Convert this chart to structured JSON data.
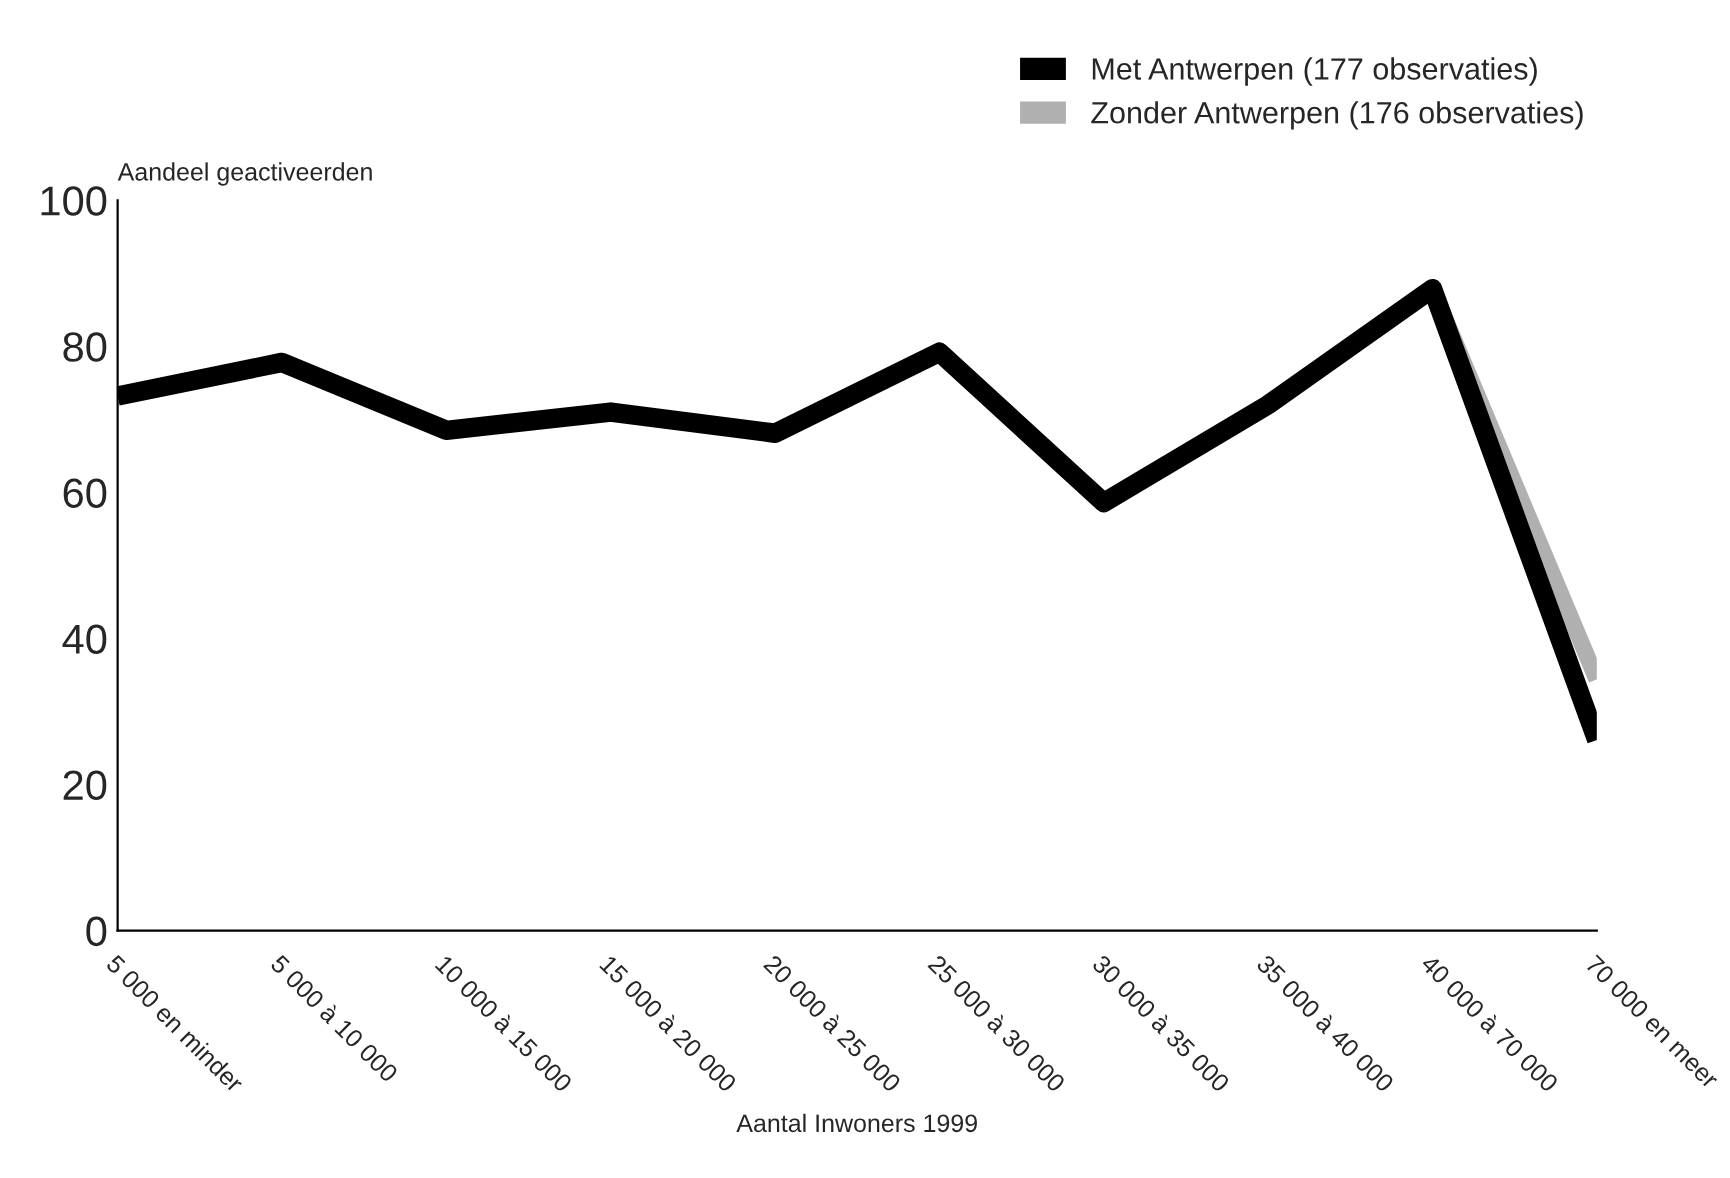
{
  "chart_data": {
    "type": "line",
    "ylabel": "Aandeel geactiveerden",
    "xlabel": "Aantal Inwoners 1999",
    "categories": [
      "5 000 en minder",
      "5 000 à 10 000",
      "10 000 à 15 000",
      "15 000 à 20 000",
      "20 000 à 25 000",
      "25 000 à 30 000",
      "30 000 à 35 000",
      "35 000 à 40 000",
      "40 000 à 70 000",
      "70 000 en meer"
    ],
    "series": [
      {
        "name": "Met Antwerpen (177 observaties)",
        "color": "#000000",
        "values": [
          73.2,
          77.8,
          68.5,
          71,
          68.1,
          79.2,
          58.6,
          72,
          87.9,
          26.1
        ]
      },
      {
        "name": "Zonder Antwerpen (176 observaties)",
        "color": "#b0b0b0",
        "values": [
          null,
          null,
          null,
          null,
          null,
          null,
          null,
          null,
          87.9,
          34.4
        ]
      }
    ],
    "ylim": [
      0,
      100
    ],
    "yticks": [
      0,
      20,
      40,
      60,
      80,
      100
    ],
    "grid": false,
    "legend": "top right",
    "marker": "none",
    "line_style": "solid"
  }
}
